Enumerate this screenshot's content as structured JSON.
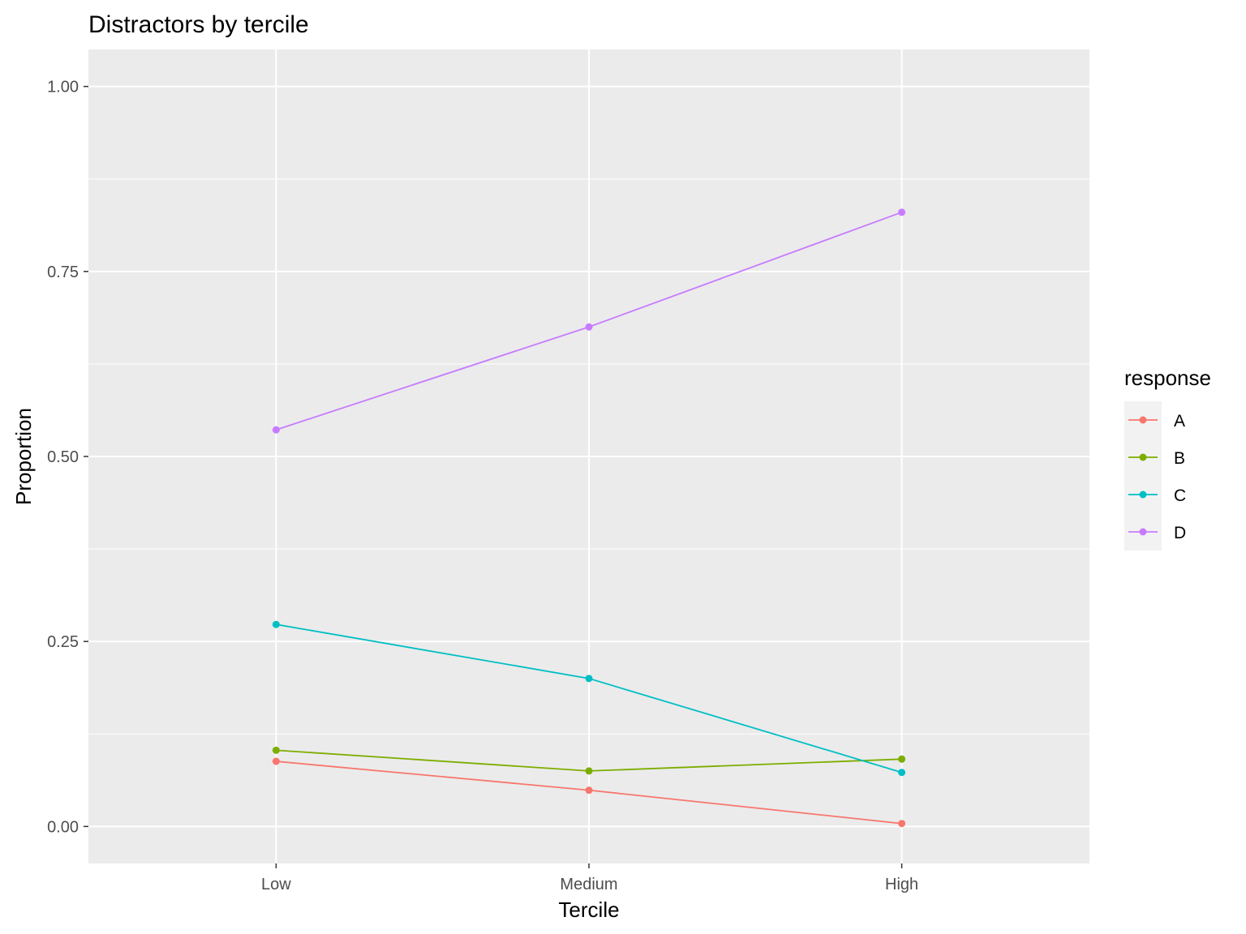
{
  "chart_data": {
    "type": "line",
    "title": "Distractors by tercile",
    "xlabel": "Tercile",
    "ylabel": "Proportion",
    "categories": [
      "Low",
      "Medium",
      "High"
    ],
    "ylim": [
      -0.05,
      1.05
    ],
    "yticks": [
      0.0,
      0.25,
      0.5,
      0.75,
      1.0
    ],
    "ytick_labels": [
      "0.00",
      "0.25",
      "0.50",
      "0.75",
      "1.00"
    ],
    "grid": true,
    "legend": {
      "title": "response",
      "placement": "right"
    },
    "series": [
      {
        "name": "A",
        "color": "#F8766D",
        "values": [
          0.088,
          0.049,
          0.004
        ]
      },
      {
        "name": "B",
        "color": "#7CAE00",
        "values": [
          0.103,
          0.075,
          0.091
        ]
      },
      {
        "name": "C",
        "color": "#00BFC4",
        "values": [
          0.273,
          0.2,
          0.073
        ]
      },
      {
        "name": "D",
        "color": "#C77CFF",
        "values": [
          0.536,
          0.675,
          0.83
        ]
      }
    ]
  }
}
